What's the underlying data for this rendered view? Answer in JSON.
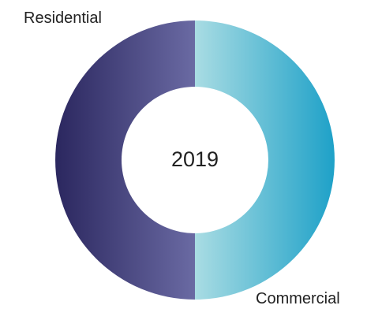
{
  "chart_data": {
    "type": "pie",
    "donut": true,
    "center_label": "2019",
    "categories": [
      "Residential",
      "Commercial"
    ],
    "values": [
      50,
      50
    ],
    "colors": {
      "Residential": [
        "#2b275f",
        "#6a6aa3"
      ],
      "Commercial": [
        "#a9dce3",
        "#1ea1c8"
      ]
    },
    "legend": "none"
  }
}
